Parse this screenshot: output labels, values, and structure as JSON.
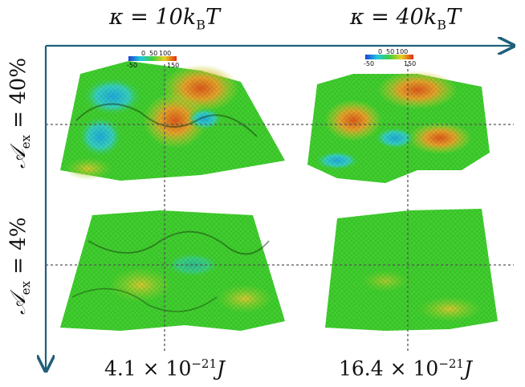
{
  "columns": [
    {
      "label_text": "κ = 10k",
      "label_sub": "B",
      "label_tail": "T",
      "bottom_value": "4.1 × 10",
      "bottom_exp": "−21",
      "bottom_unit": "J"
    },
    {
      "label_text": "κ = 40k",
      "label_sub": "B",
      "label_tail": "T",
      "bottom_value": "16.4 × 10",
      "bottom_exp": "−21",
      "bottom_unit": "J"
    }
  ],
  "rows": [
    {
      "label_text": "𝒜",
      "label_sub": "ex",
      "label_tail": " = 40%"
    },
    {
      "label_text": "𝒜",
      "label_sub": "ex",
      "label_tail": " = 4%"
    }
  ],
  "colorbars": [
    {
      "ticks": [
        "-50",
        "0",
        "50",
        "100",
        "150"
      ]
    },
    {
      "ticks": [
        "-50",
        "0",
        "50",
        "100",
        "150"
      ]
    }
  ],
  "colors": {
    "axis": "#1f5f7a",
    "guide": "#555555",
    "surface_green": "#3fce2e",
    "surface_yellow": "#c8d830",
    "surface_orange": "#e06a1c",
    "surface_blue": "#2fc0d8"
  }
}
